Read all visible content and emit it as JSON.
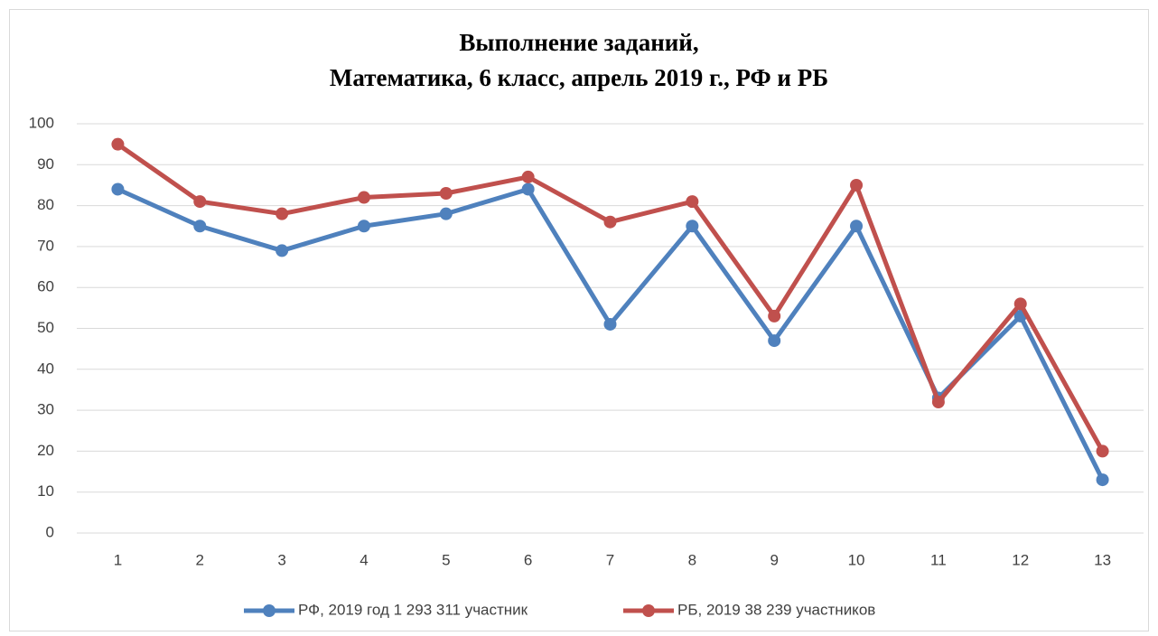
{
  "chart_data": {
    "type": "line",
    "title": [
      "Выполнение заданий,",
      "Математика, 6 класс, апрель 2019 г., РФ и РБ"
    ],
    "categories": [
      "1",
      "2",
      "3",
      "4",
      "5",
      "6",
      "7",
      "8",
      "9",
      "10",
      "11",
      "12",
      "13"
    ],
    "series": [
      {
        "name": "РФ, 2019 год 1 293 311 участник",
        "color": "#4f81bd",
        "values": [
          84,
          75,
          69,
          75,
          78,
          84,
          51,
          75,
          47,
          75,
          33,
          53,
          13
        ]
      },
      {
        "name": "РБ, 2019 38 239 участников",
        "color": "#c0504d",
        "values": [
          95,
          81,
          78,
          82,
          83,
          87,
          76,
          81,
          53,
          85,
          32,
          56,
          20
        ]
      }
    ],
    "ylim": [
      0,
      100
    ],
    "yticks": [
      0,
      10,
      20,
      30,
      40,
      50,
      60,
      70,
      80,
      90,
      100
    ],
    "grid": true,
    "legend": "bottom"
  }
}
